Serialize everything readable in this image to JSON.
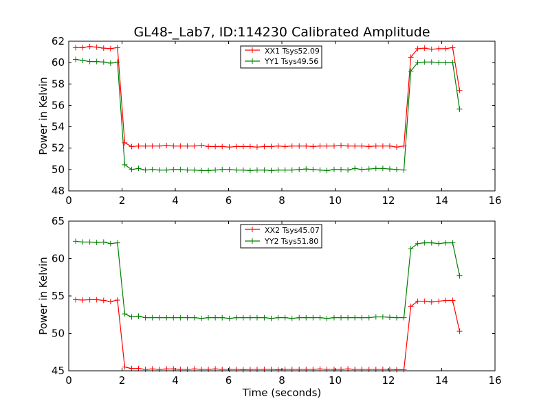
{
  "figure_title": "GL48-_Lab7, ID:114230 Calibrated Amplitude",
  "chart_data": [
    {
      "type": "line",
      "title": "GL48-_Lab7, ID:114230 Calibrated Amplitude",
      "xlabel": "",
      "ylabel": "Power in Kelvin",
      "xlim": [
        0,
        16
      ],
      "ylim": [
        48,
        62
      ],
      "xticks": [
        0,
        2,
        4,
        6,
        8,
        10,
        12,
        14,
        16
      ],
      "yticks": [
        48,
        50,
        52,
        54,
        56,
        58,
        60,
        62
      ],
      "grid": false,
      "legend_position": "top-center",
      "x": [
        0.26,
        0.52,
        0.79,
        1.05,
        1.31,
        1.57,
        1.83,
        2.1,
        2.36,
        2.62,
        2.88,
        3.14,
        3.41,
        3.67,
        3.93,
        4.19,
        4.45,
        4.72,
        4.98,
        5.24,
        5.5,
        5.76,
        6.03,
        6.29,
        6.55,
        6.81,
        7.07,
        7.34,
        7.6,
        7.86,
        8.12,
        8.38,
        8.65,
        8.91,
        9.17,
        9.43,
        9.69,
        9.96,
        10.22,
        10.48,
        10.74,
        11.0,
        11.27,
        11.53,
        11.79,
        12.05,
        12.31,
        12.58,
        12.84,
        13.1,
        13.36,
        13.62,
        13.89,
        14.15,
        14.41,
        14.67,
        14.93
      ],
      "series": [
        {
          "name": "XX1 Tsys52.09",
          "color": "#ff0000",
          "values": [
            61.4,
            61.4,
            61.5,
            61.45,
            61.35,
            61.3,
            61.4,
            52.5,
            52.15,
            52.2,
            52.2,
            52.2,
            52.2,
            52.25,
            52.2,
            52.2,
            52.2,
            52.2,
            52.25,
            52.15,
            52.15,
            52.15,
            52.1,
            52.15,
            52.15,
            52.15,
            52.1,
            52.15,
            52.15,
            52.2,
            52.15,
            52.2,
            52.2,
            52.2,
            52.15,
            52.2,
            52.2,
            52.2,
            52.25,
            52.2,
            52.2,
            52.2,
            52.15,
            52.2,
            52.2,
            52.2,
            52.1,
            52.2,
            60.5,
            61.3,
            61.35,
            61.25,
            61.3,
            61.3,
            61.4,
            57.4,
            null
          ]
        },
        {
          "name": "YY1 Tsys49.56",
          "color": "#008000",
          "values": [
            60.3,
            60.2,
            60.1,
            60.1,
            60.05,
            59.95,
            60.05,
            50.45,
            50.0,
            50.1,
            49.95,
            50.0,
            49.95,
            49.95,
            50.0,
            50.0,
            49.95,
            49.95,
            49.9,
            49.9,
            49.95,
            50.0,
            50.0,
            49.95,
            49.95,
            49.9,
            49.95,
            49.95,
            49.9,
            49.95,
            49.95,
            49.95,
            50.0,
            50.05,
            50.0,
            49.95,
            49.9,
            50.0,
            50.0,
            49.95,
            50.1,
            50.0,
            50.05,
            50.1,
            50.1,
            50.05,
            50.0,
            49.95,
            59.2,
            60.0,
            60.05,
            60.05,
            60.0,
            60.0,
            60.0,
            55.65,
            null
          ]
        }
      ]
    },
    {
      "type": "line",
      "title": "",
      "xlabel": "Time (seconds)",
      "ylabel": "Power in Kelvin",
      "xlim": [
        0,
        16
      ],
      "ylim": [
        45,
        65
      ],
      "xticks": [
        0,
        2,
        4,
        6,
        8,
        10,
        12,
        14,
        16
      ],
      "yticks": [
        45,
        50,
        55,
        60,
        65
      ],
      "grid": false,
      "legend_position": "top-center",
      "x": [
        0.26,
        0.52,
        0.79,
        1.05,
        1.31,
        1.57,
        1.83,
        2.1,
        2.36,
        2.62,
        2.88,
        3.14,
        3.41,
        3.67,
        3.93,
        4.19,
        4.45,
        4.72,
        4.98,
        5.24,
        5.5,
        5.76,
        6.03,
        6.29,
        6.55,
        6.81,
        7.07,
        7.34,
        7.6,
        7.86,
        8.12,
        8.38,
        8.65,
        8.91,
        9.17,
        9.43,
        9.69,
        9.96,
        10.22,
        10.48,
        10.74,
        11.0,
        11.27,
        11.53,
        11.79,
        12.05,
        12.31,
        12.58,
        12.84,
        13.1,
        13.36,
        13.62,
        13.89,
        14.15,
        14.41,
        14.67,
        14.93
      ],
      "series": [
        {
          "name": "XX2 Tsys45.07",
          "color": "#ff0000",
          "values": [
            54.5,
            54.45,
            54.5,
            54.5,
            54.4,
            54.25,
            54.45,
            45.5,
            45.3,
            45.3,
            45.2,
            45.25,
            45.2,
            45.25,
            45.25,
            45.2,
            45.2,
            45.25,
            45.2,
            45.2,
            45.25,
            45.2,
            45.2,
            45.2,
            45.15,
            45.2,
            45.2,
            45.2,
            45.2,
            45.15,
            45.2,
            45.2,
            45.2,
            45.2,
            45.2,
            45.25,
            45.2,
            45.2,
            45.2,
            45.25,
            45.2,
            45.2,
            45.2,
            45.2,
            45.2,
            45.2,
            45.15,
            45.15,
            53.6,
            54.3,
            54.3,
            54.2,
            54.3,
            54.4,
            54.4,
            50.3,
            null
          ]
        },
        {
          "name": "YY2 Tsys51.80",
          "color": "#008000",
          "values": [
            62.3,
            62.2,
            62.2,
            62.15,
            62.2,
            62.0,
            62.1,
            52.6,
            52.2,
            52.3,
            52.1,
            52.1,
            52.1,
            52.1,
            52.1,
            52.1,
            52.1,
            52.1,
            52.0,
            52.1,
            52.1,
            52.1,
            52.0,
            52.1,
            52.1,
            52.1,
            52.1,
            52.1,
            52.0,
            52.1,
            52.1,
            52.0,
            52.1,
            52.1,
            52.1,
            52.1,
            52.0,
            52.1,
            52.1,
            52.1,
            52.1,
            52.1,
            52.1,
            52.2,
            52.2,
            52.15,
            52.1,
            52.1,
            61.3,
            62.0,
            62.1,
            62.1,
            62.0,
            62.1,
            62.1,
            57.7,
            null
          ]
        }
      ]
    }
  ]
}
